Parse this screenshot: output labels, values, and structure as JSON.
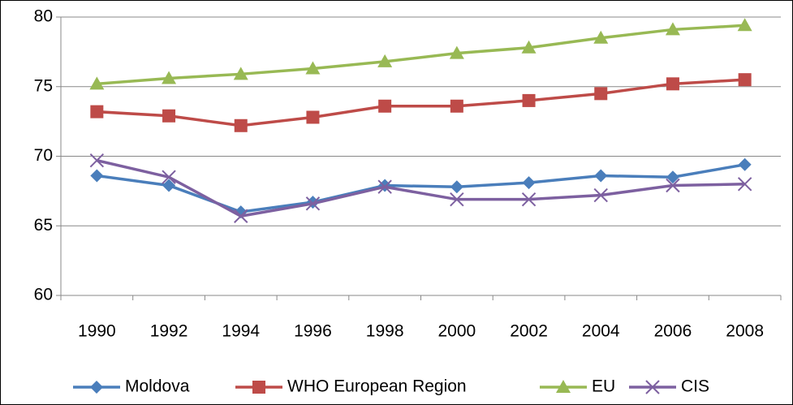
{
  "chart_data": {
    "type": "line",
    "categories": [
      "1990",
      "1992",
      "1994",
      "1996",
      "1998",
      "2000",
      "2002",
      "2004",
      "2006",
      "2008"
    ],
    "series": [
      {
        "name": "Moldova",
        "color": "#4a7ebb",
        "marker": "diamond",
        "values": [
          68.6,
          67.9,
          66.0,
          66.7,
          67.9,
          67.8,
          68.1,
          68.6,
          68.5,
          69.4
        ]
      },
      {
        "name": "WHO European Region",
        "color": "#be4b48",
        "marker": "square",
        "values": [
          73.2,
          72.9,
          72.2,
          72.8,
          73.6,
          73.6,
          74.0,
          74.5,
          75.2,
          75.5
        ]
      },
      {
        "name": "EU",
        "color": "#98b954",
        "marker": "triangle",
        "values": [
          75.2,
          75.6,
          75.9,
          76.3,
          76.8,
          77.4,
          77.8,
          78.5,
          79.1,
          79.4
        ]
      },
      {
        "name": "CIS",
        "color": "#7d60a0",
        "marker": "x",
        "values": [
          69.7,
          68.5,
          65.7,
          66.6,
          67.8,
          66.9,
          66.9,
          67.2,
          67.9,
          68.0
        ]
      }
    ],
    "ylim": [
      60,
      80
    ],
    "yticks": [
      60,
      65,
      70,
      75,
      80
    ],
    "grid": true,
    "legend": "bottom"
  }
}
